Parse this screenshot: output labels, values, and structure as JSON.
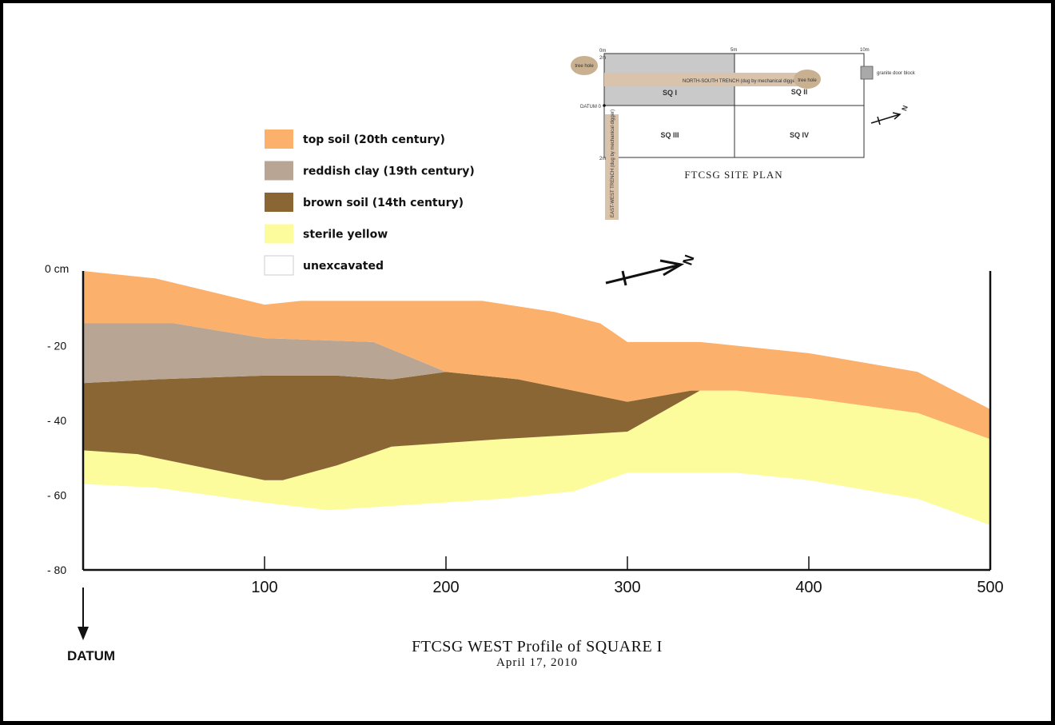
{
  "legend": [
    {
      "label": "top soil (20th century)",
      "color": "#fbb06b"
    },
    {
      "label": "reddish clay (19th century)",
      "color": "#b9a594"
    },
    {
      "label": "brown soil (14th century)",
      "color": "#8a6634"
    },
    {
      "label": "sterile yellow",
      "color": "#fcfc9c"
    },
    {
      "label": "unexcavated",
      "color": "#ffffff"
    }
  ],
  "profile": {
    "y_ticks": [
      "0 cm",
      "- 20",
      "- 40",
      "- 60",
      "- 80"
    ],
    "x_ticks": [
      "100",
      "200",
      "300",
      "400",
      "500"
    ],
    "x_range": [
      0,
      500
    ],
    "y_range": [
      0,
      -80
    ],
    "layers": [
      {
        "name": "sterile yellow",
        "color": "#fcfc9c",
        "top": [
          [
            0,
            48
          ],
          [
            30,
            49
          ],
          [
            100,
            56
          ],
          [
            110,
            56
          ],
          [
            140,
            52
          ],
          [
            170,
            47
          ],
          [
            230,
            45
          ],
          [
            300,
            43
          ],
          [
            340,
            32
          ],
          [
            360,
            32
          ],
          [
            400,
            34
          ],
          [
            460,
            38
          ],
          [
            500,
            45
          ]
        ],
        "bottom": [
          [
            0,
            57
          ],
          [
            40,
            58
          ],
          [
            100,
            62
          ],
          [
            135,
            64
          ],
          [
            230,
            61
          ],
          [
            270,
            59
          ],
          [
            300,
            54
          ],
          [
            360,
            54
          ],
          [
            400,
            56
          ],
          [
            460,
            61
          ],
          [
            500,
            68
          ]
        ]
      },
      {
        "name": "brown soil",
        "color": "#8a6634",
        "top": [
          [
            0,
            30
          ],
          [
            40,
            29
          ],
          [
            100,
            28
          ],
          [
            140,
            28
          ],
          [
            170,
            29
          ],
          [
            200,
            27
          ],
          [
            240,
            29
          ],
          [
            280,
            33
          ],
          [
            300,
            35
          ],
          [
            335,
            32
          ],
          [
            360,
            32
          ]
        ],
        "bottom": [
          [
            0,
            48
          ],
          [
            30,
            49
          ],
          [
            100,
            56
          ],
          [
            110,
            56
          ],
          [
            140,
            52
          ],
          [
            170,
            47
          ],
          [
            230,
            45
          ],
          [
            300,
            43
          ],
          [
            340,
            32
          ],
          [
            360,
            32
          ]
        ]
      },
      {
        "name": "reddish clay",
        "color": "#b9a594",
        "top": [
          [
            0,
            14
          ],
          [
            50,
            14
          ],
          [
            100,
            18
          ],
          [
            160,
            19
          ],
          [
            175,
            22
          ],
          [
            200,
            27
          ]
        ],
        "bottom": [
          [
            0,
            30
          ],
          [
            40,
            29
          ],
          [
            100,
            28
          ],
          [
            140,
            28
          ],
          [
            170,
            29
          ],
          [
            200,
            27
          ]
        ]
      },
      {
        "name": "top soil",
        "color": "#fbb06b",
        "top": [
          [
            0,
            0
          ],
          [
            40,
            2
          ],
          [
            100,
            9
          ],
          [
            120,
            8
          ],
          [
            220,
            8
          ],
          [
            260,
            11
          ],
          [
            285,
            14
          ],
          [
            300,
            19
          ],
          [
            340,
            19
          ],
          [
            360,
            20
          ],
          [
            400,
            22
          ],
          [
            460,
            27
          ],
          [
            500,
            37
          ]
        ],
        "bottom": [
          [
            0,
            14
          ],
          [
            50,
            14
          ],
          [
            100,
            18
          ],
          [
            160,
            19
          ],
          [
            175,
            22
          ],
          [
            200,
            27
          ],
          [
            240,
            29
          ],
          [
            280,
            33
          ],
          [
            300,
            35
          ],
          [
            335,
            32
          ],
          [
            360,
            32
          ],
          [
            400,
            34
          ],
          [
            460,
            38
          ],
          [
            500,
            45
          ]
        ]
      }
    ]
  },
  "datum_label": "DATUM",
  "title": "FTCSG WEST Profile of SQUARE I",
  "subtitle": "April 17, 2010",
  "north_label": "N",
  "site_plan": {
    "title": "FTCSG SITE PLAN",
    "squares": [
      "SQ I",
      "SQ II",
      "SQ III",
      "SQ IV"
    ],
    "scale_top": [
      "0m",
      "5m",
      "10m"
    ],
    "scale_left": [
      "2m",
      "2m"
    ],
    "datum": "DATUM 0",
    "trench_ns": "NORTH-SOUTH TRENCH (dug by mechanical digger)",
    "trench_ew": "EAST-WEST TRENCH (dug by mechanical digger)",
    "tree_hole_left": "tree hole",
    "tree_hole_right": "tree hole",
    "block": "granite door block"
  }
}
